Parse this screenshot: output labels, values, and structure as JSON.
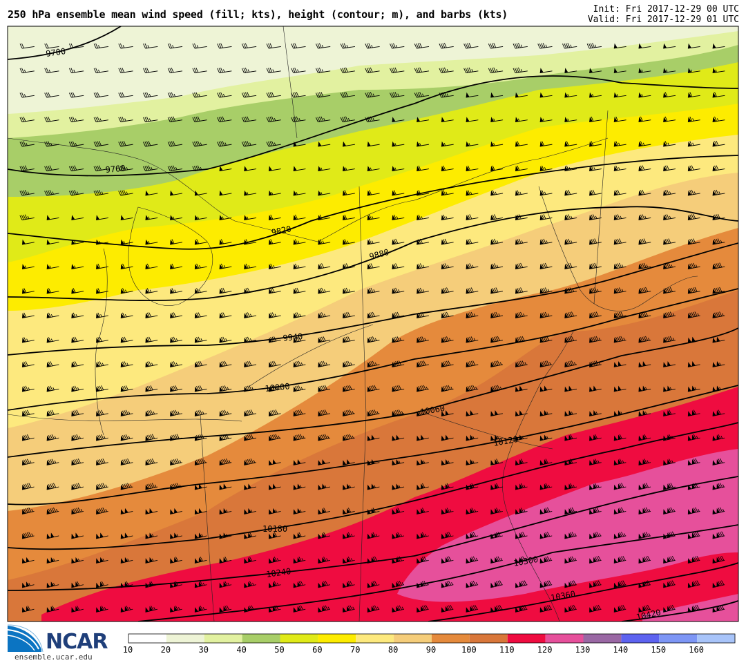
{
  "header": {
    "title": "250 hPa ensemble mean wind speed (fill; kts), height (contour; m), and barbs (kts)",
    "init": "Init: Fri 2017-12-29 00 UTC",
    "valid": "Valid: Fri 2017-12-29 01 UTC"
  },
  "chart_data": {
    "type": "contour-map",
    "variable": "250 hPa wind speed (kts)",
    "height_contours_m": [
      "9700",
      "9760",
      "9820",
      "9880",
      "9940",
      "10000",
      "10060",
      "10120",
      "10180",
      "10240",
      "10300",
      "10360",
      "10420"
    ],
    "colorbar": {
      "ticks": [
        "10",
        "20",
        "30",
        "40",
        "50",
        "60",
        "70",
        "80",
        "90",
        "100",
        "110",
        "120",
        "130",
        "140",
        "150",
        "160"
      ],
      "colors": [
        "#ffffff",
        "#eef4d6",
        "#e2f1a0",
        "#a8ce68",
        "#e0ea18",
        "#fdec00",
        "#fde97e",
        "#f5cd7a",
        "#e58a3c",
        "#d9773a",
        "#ef0c40",
        "#e6509b",
        "#9a68a4",
        "#5d63f0",
        "#7d96f5",
        "#a8c4f9"
      ]
    }
  },
  "branding": {
    "logo": "NCAR",
    "url": "ensemble.ucar.edu"
  }
}
